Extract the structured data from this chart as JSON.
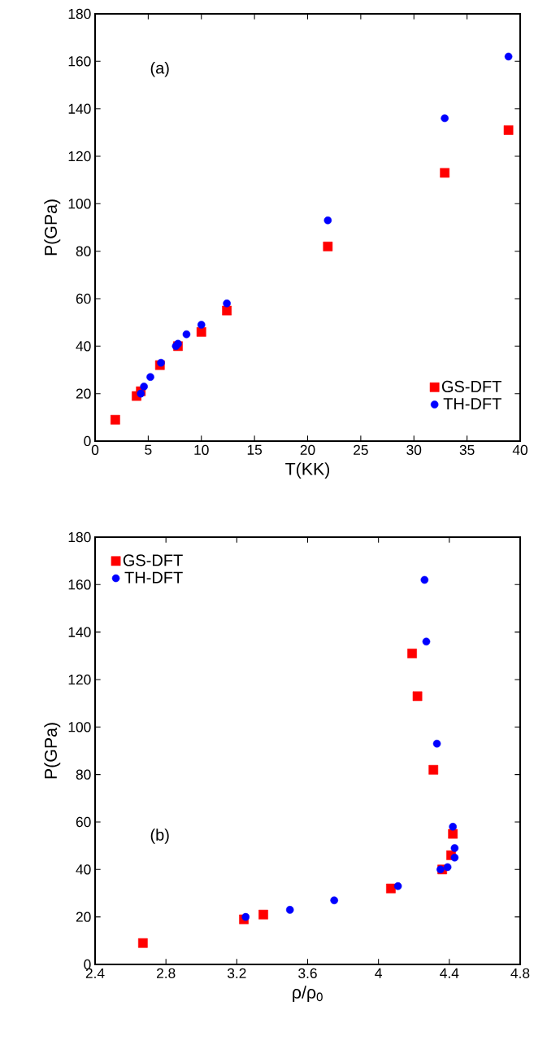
{
  "chart_data": [
    {
      "type": "scatter",
      "annotations": [
        "(a)"
      ],
      "xlabel": "T(KK)",
      "ylabel": "P(GPa)",
      "xlim": [
        0,
        40
      ],
      "ylim": [
        0,
        180
      ],
      "xticks": [
        0,
        5,
        10,
        15,
        20,
        25,
        30,
        35,
        40
      ],
      "yticks": [
        0,
        20,
        40,
        60,
        80,
        100,
        120,
        140,
        160,
        180
      ],
      "legend": "bottom right",
      "grid": false,
      "series": [
        {
          "name": "GS-DFT",
          "color": "#ff0000",
          "marker": "square",
          "x": [
            1.9,
            3.9,
            4.3,
            6.1,
            7.8,
            10,
            12.4,
            21.9,
            32.9,
            38.9
          ],
          "values": [
            9,
            19,
            21,
            32,
            40,
            46,
            55,
            82,
            113,
            131
          ]
        },
        {
          "name": "TH-DFT",
          "color": "#0000ff",
          "marker": "circle",
          "x": [
            4.3,
            4.6,
            5.2,
            6.2,
            7.6,
            7.8,
            8.6,
            10,
            12.4,
            21.9,
            32.9,
            38.9
          ],
          "values": [
            20,
            23,
            27,
            33,
            40,
            41,
            45,
            49,
            58,
            93,
            136,
            162
          ]
        }
      ]
    },
    {
      "type": "scatter",
      "annotations": [
        "(b)"
      ],
      "xlabel": "ρ/ρ$_{0}$",
      "ylabel": "P(GPa)",
      "xlim": [
        2.4,
        4.8
      ],
      "ylim": [
        0,
        180
      ],
      "xticks": [
        2.4,
        2.8,
        3.2,
        3.6,
        4,
        4.4,
        4.8
      ],
      "yticks": [
        0,
        20,
        40,
        60,
        80,
        100,
        120,
        140,
        160,
        180
      ],
      "legend": "top left",
      "grid": false,
      "series": [
        {
          "name": "GS-DFT",
          "color": "#ff0000",
          "marker": "square",
          "x": [
            2.67,
            3.24,
            3.35,
            4.07,
            4.36,
            4.41,
            4.42,
            4.31,
            4.22,
            4.19
          ],
          "values": [
            9,
            19,
            21,
            32,
            40,
            46,
            55,
            82,
            113,
            131
          ]
        },
        {
          "name": "TH-DFT",
          "color": "#0000ff",
          "marker": "circle",
          "x": [
            3.25,
            3.5,
            3.75,
            4.11,
            4.35,
            4.39,
            4.43,
            4.43,
            4.42,
            4.33,
            4.27,
            4.26
          ],
          "values": [
            20,
            23,
            27,
            33,
            40,
            41,
            45,
            49,
            58,
            93,
            136,
            162
          ]
        }
      ]
    }
  ]
}
